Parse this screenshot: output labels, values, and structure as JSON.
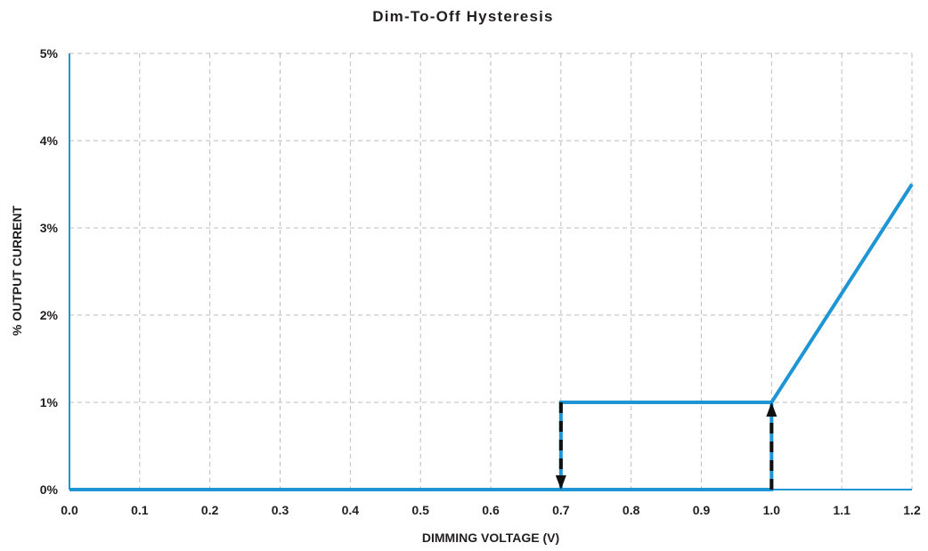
{
  "chart_data": {
    "type": "line",
    "title": "Dim-To-Off Hysteresis",
    "xlabel": "DIMMING VOLTAGE (V)",
    "ylabel": "% OUTPUT CURRENT",
    "x_ticks": [
      "0.0",
      "0.1",
      "0.2",
      "0.3",
      "0.4",
      "0.5",
      "0.6",
      "0.7",
      "0.8",
      "0.9",
      "1.0",
      "1.1",
      "1.2"
    ],
    "y_ticks": [
      "0%",
      "1%",
      "2%",
      "3%",
      "4%",
      "5%"
    ],
    "xlim": [
      0,
      1.2
    ],
    "ylim": [
      0,
      5
    ],
    "grid": true,
    "series": [
      {
        "x": [
          0.0,
          1.0,
          1.0,
          1.2
        ],
        "y": [
          0,
          0,
          1,
          3.5
        ]
      },
      {
        "x": [
          0.7,
          0.7,
          1.0
        ],
        "y": [
          0,
          1,
          1
        ]
      }
    ],
    "arrows": [
      {
        "x": 0.7,
        "from_y": 1,
        "to_y": 0,
        "direction": "down"
      },
      {
        "x": 1.0,
        "from_y": 0,
        "to_y": 1,
        "direction": "up"
      }
    ],
    "colors": {
      "series": "#1f95d3",
      "arrow": "#111111",
      "grid": "#bdbdbd",
      "text": "#231f20"
    }
  }
}
